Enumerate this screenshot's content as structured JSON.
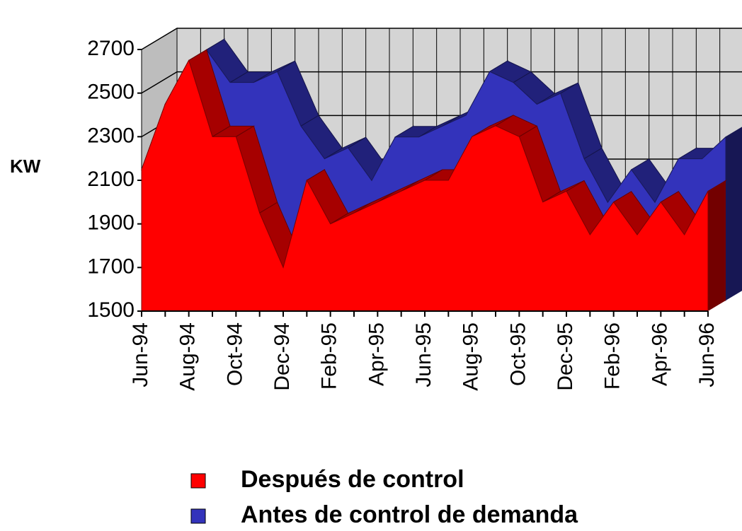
{
  "chart_data": {
    "type": "area3d",
    "y_label": "KW",
    "categories": [
      "Jun-94",
      null,
      "Aug-94",
      null,
      "Oct-94",
      null,
      "Dec-94",
      null,
      "Feb-95",
      null,
      "Apr-95",
      null,
      "Jun-95",
      null,
      "Aug-95",
      null,
      "Oct-95",
      null,
      "Dec-95",
      null,
      "Feb-96",
      null,
      "Apr-96",
      null,
      "Jun-96"
    ],
    "series": [
      {
        "name": "Después de control",
        "color": "#ff0000",
        "values": [
          2150,
          2450,
          2650,
          2300,
          2300,
          1950,
          1700,
          2100,
          1900,
          1950,
          2000,
          2050,
          2100,
          2100,
          2300,
          2350,
          2300,
          2000,
          2050,
          1850,
          2000,
          1850,
          2000,
          1850,
          2050
        ]
      },
      {
        "name": "Antes de control de demanda",
        "color": "#3333bb",
        "values": [
          2150,
          2450,
          2650,
          2500,
          2500,
          2550,
          2300,
          2150,
          2200,
          2050,
          2250,
          2250,
          2300,
          2350,
          2550,
          2500,
          2400,
          2450,
          2150,
          1950,
          2100,
          1950,
          2150,
          2150,
          2250
        ]
      }
    ],
    "ylim": [
      1500,
      2700
    ],
    "yticks": [
      1500,
      1700,
      1900,
      2100,
      2300,
      2500,
      2700
    ],
    "grid": true
  }
}
